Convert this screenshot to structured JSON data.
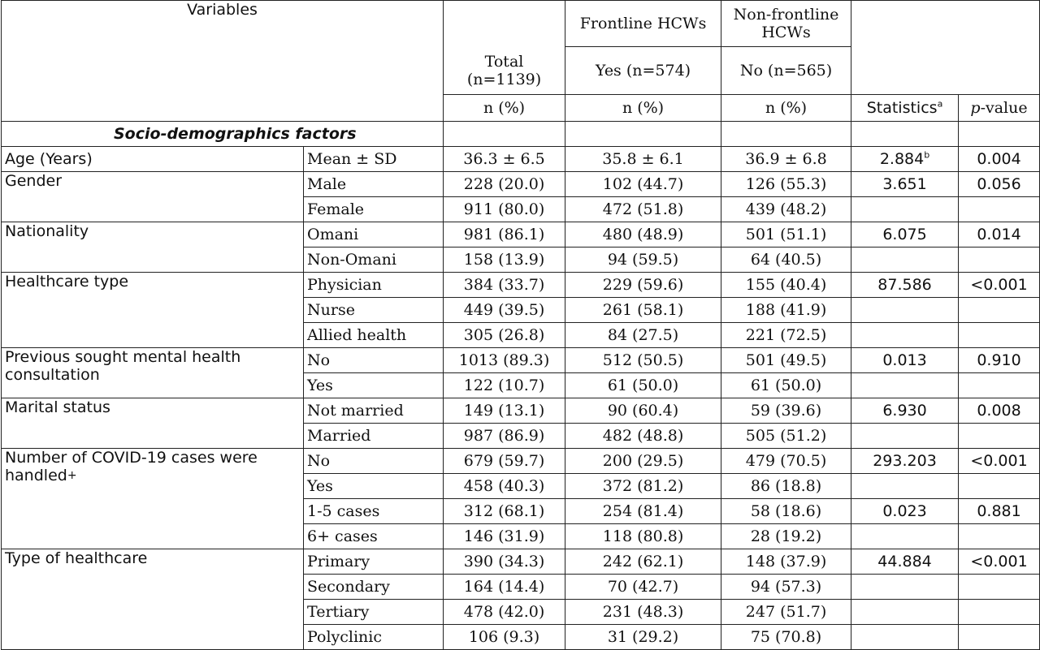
{
  "header": {
    "variables": "Variables",
    "frontline": "Frontline HCWs",
    "nonfrontline": "Non-frontline HCWs",
    "total": "Total (n=1139)",
    "yes": "Yes (n=574)",
    "no": "No (n=565)",
    "n_pct": "n (%)",
    "statistics": "Statistics",
    "statistics_sup": "a",
    "p_italic": "p",
    "p_rest": "-value"
  },
  "section": "Socio-demographics factors",
  "age": {
    "label": "Age (Years)",
    "sub": "Mean ± SD",
    "total": "36.3 ± 6.5",
    "yes": "35.8 ± 6.1",
    "no": "36.9 ± 6.8",
    "stat": "2.884",
    "stat_sup": "b",
    "p": "0.004"
  },
  "groups": [
    {
      "label": "Gender",
      "rows": [
        {
          "sub": "Male",
          "total": "228 (20.0)",
          "yes": "102 (44.7)",
          "no": "126 (55.3)",
          "stat": "3.651",
          "p": "0.056"
        },
        {
          "sub": "Female",
          "total": "911 (80.0)",
          "yes": "472 (51.8)",
          "no": "439 (48.2)",
          "stat": "",
          "p": ""
        }
      ]
    },
    {
      "label": "Nationality",
      "rows": [
        {
          "sub": "Omani",
          "total": "981 (86.1)",
          "yes": "480 (48.9)",
          "no": "501 (51.1)",
          "stat": "6.075",
          "p": "0.014"
        },
        {
          "sub": "Non-Omani",
          "total": "158 (13.9)",
          "yes": "94 (59.5)",
          "no": "64 (40.5)",
          "stat": "",
          "p": ""
        }
      ]
    },
    {
      "label": "Healthcare type",
      "rows": [
        {
          "sub": "Physician",
          "total": "384 (33.7)",
          "yes": "229 (59.6)",
          "no": "155 (40.4)",
          "stat": "87.586",
          "p": "<0.001"
        },
        {
          "sub": "Nurse",
          "total": "449 (39.5)",
          "yes": "261 (58.1)",
          "no": "188 (41.9)",
          "stat": "",
          "p": ""
        },
        {
          "sub": "Allied health",
          "total": "305 (26.8)",
          "yes": "84 (27.5)",
          "no": "221 (72.5)",
          "stat": "",
          "p": ""
        }
      ]
    },
    {
      "label": "Previous sought mental health consultation",
      "rows": [
        {
          "sub": "No",
          "total": "1013 (89.3)",
          "yes": "512 (50.5)",
          "no": "501 (49.5)",
          "stat": "0.013",
          "p": "0.910"
        },
        {
          "sub": "Yes",
          "total": "122 (10.7)",
          "yes": "61 (50.0)",
          "no": "61 (50.0)",
          "stat": "",
          "p": ""
        }
      ]
    },
    {
      "label": "Marital status",
      "rows": [
        {
          "sub": "Not married",
          "total": "149 (13.1)",
          "yes": "90 (60.4)",
          "no": "59 (39.6)",
          "stat": "6.930",
          "p": "0.008"
        },
        {
          "sub": "Married",
          "total": "987 (86.9)",
          "yes": "482 (48.8)",
          "no": "505 (51.2)",
          "stat": "",
          "p": ""
        }
      ]
    },
    {
      "label": "Number of COVID-19 cases were handled",
      "label_sup": "+",
      "rows": [
        {
          "sub": "No",
          "total": "679 (59.7)",
          "yes": "200 (29.5)",
          "no": "479 (70.5)",
          "stat": "293.203",
          "p": "<0.001"
        },
        {
          "sub": "Yes",
          "total": "458 (40.3)",
          "yes": "372 (81.2)",
          "no": "86 (18.8)",
          "stat": "",
          "p": ""
        },
        {
          "sub": "1-5 cases",
          "total": "312 (68.1)",
          "yes": "254 (81.4)",
          "no": "58 (18.6)",
          "stat": "0.023",
          "p": "0.881"
        },
        {
          "sub": "6+ cases",
          "total": "146 (31.9)",
          "yes": "118 (80.8)",
          "no": "28 (19.2)",
          "stat": "",
          "p": ""
        }
      ]
    },
    {
      "label": "Type of healthcare",
      "rows": [
        {
          "sub": "Primary",
          "total": "390 (34.3)",
          "yes": "242 (62.1)",
          "no": "148 (37.9)",
          "stat": "44.884",
          "p": "<0.001"
        },
        {
          "sub": "Secondary",
          "total": "164 (14.4)",
          "yes": "70 (42.7)",
          "no": "94 (57.3)",
          "stat": "",
          "p": ""
        },
        {
          "sub": "Tertiary",
          "total": "478 (42.0)",
          "yes": "231 (48.3)",
          "no": "247 (51.7)",
          "stat": "",
          "p": ""
        },
        {
          "sub": "Polyclinic",
          "total": "106 (9.3)",
          "yes": "31 (29.2)",
          "no": "75 (70.8)",
          "stat": "",
          "p": ""
        }
      ]
    }
  ]
}
